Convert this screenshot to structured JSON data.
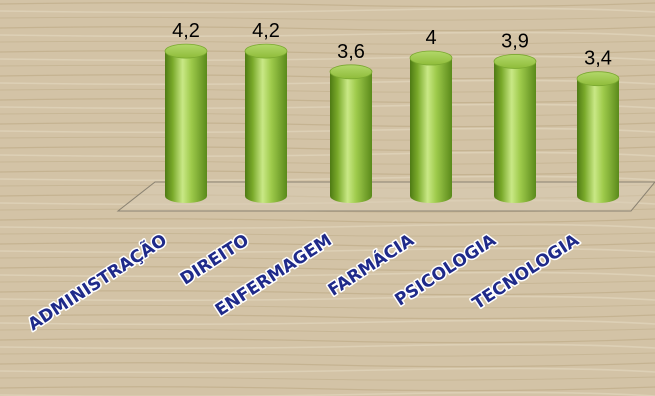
{
  "chart_data": {
    "type": "bar",
    "style": "3d-cylinder",
    "categories": [
      "ADMINISTRAÇÃO",
      "DIREITO",
      "ENFERMAGEM",
      "FARMÁCIA",
      "PSICOLOGIA",
      "TECNOLOGIA"
    ],
    "values": [
      4.2,
      4.2,
      3.6,
      4,
      3.9,
      3.4
    ],
    "value_labels": [
      "4,2",
      "4,2",
      "3,6",
      "4",
      "3,9",
      "3,4"
    ],
    "title": "",
    "xlabel": "",
    "ylabel": "",
    "ylim": [
      0,
      4.5
    ],
    "grid": false,
    "legend": "none",
    "colors": {
      "bar": "#8fbc3a",
      "bar_dark": "#4e7a14",
      "bar_light": "#c9e886",
      "bar_top": "#9cc84a",
      "category_label": "#1f2a8a",
      "value_label": "#000000",
      "background": "#d3c3a6"
    }
  }
}
